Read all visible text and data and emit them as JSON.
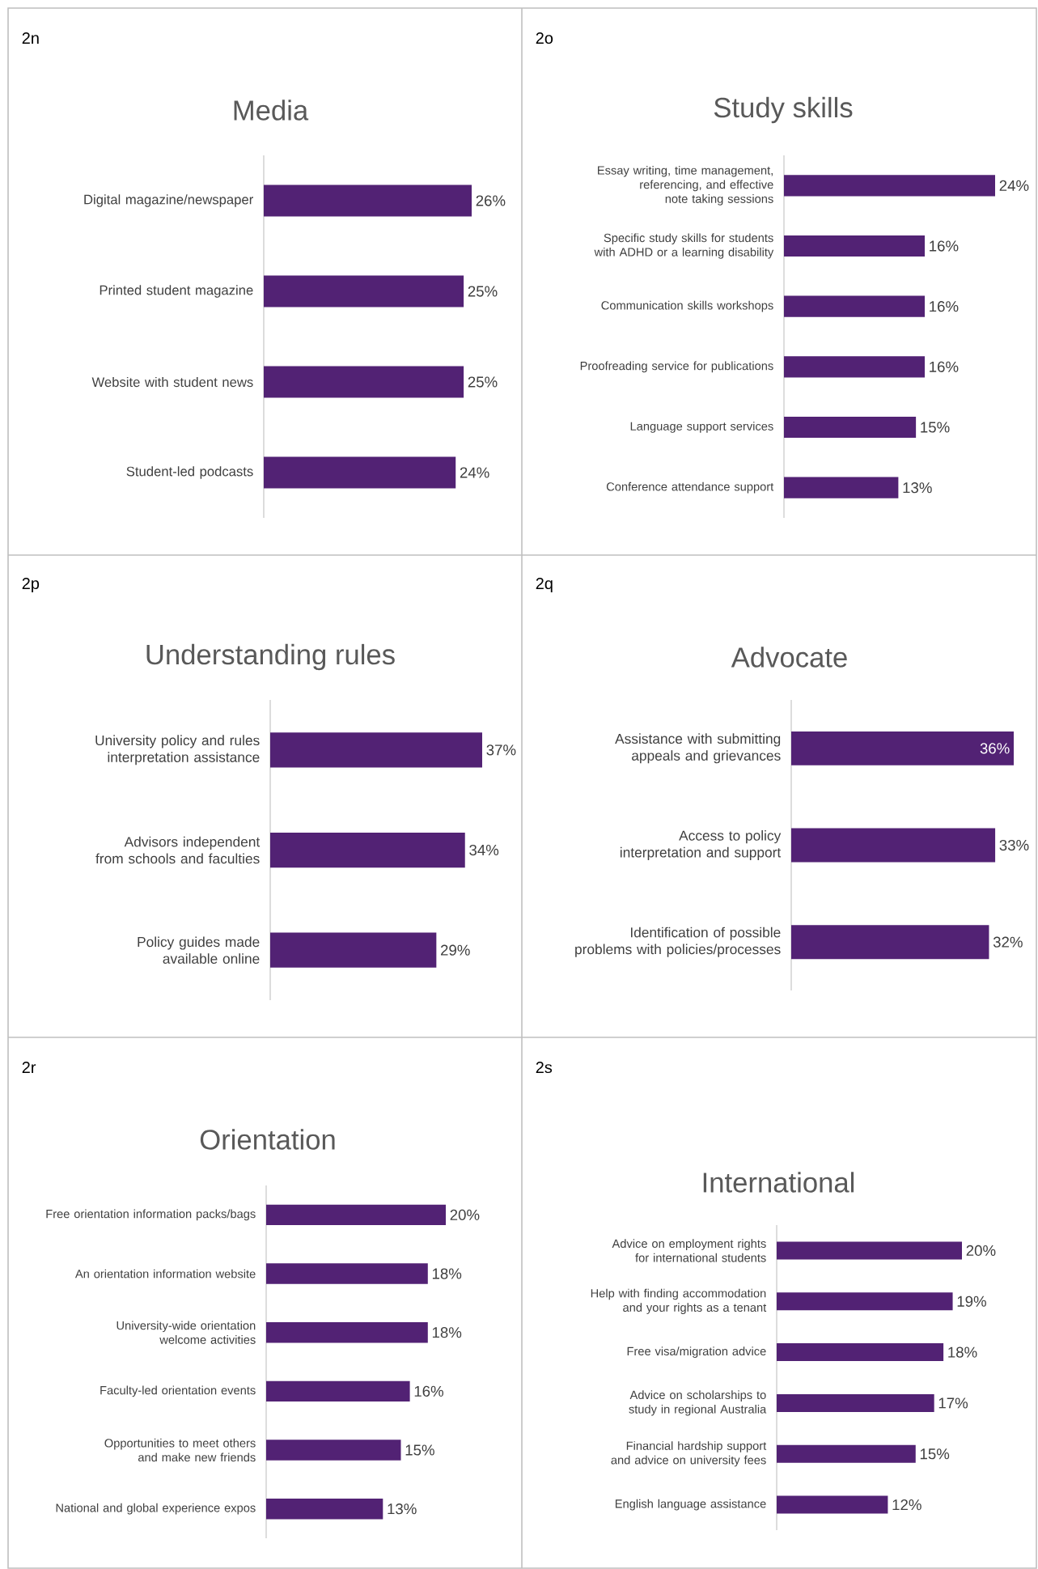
{
  "chart_data": [
    {
      "type": "bar",
      "orientation": "horizontal",
      "title": "Media",
      "annotations": [
        "2n"
      ],
      "color": "#522274",
      "categories": [
        "Digital magazine/newspaper",
        "Printed student magazine",
        "Website with student news",
        "Student-led podcasts"
      ],
      "values": [
        26,
        25,
        25,
        24
      ],
      "value_labels": [
        "26%",
        "25%",
        "25%",
        "24%"
      ]
    },
    {
      "type": "bar",
      "orientation": "horizontal",
      "title": "Study skills",
      "annotations": [
        "2o"
      ],
      "color": "#522274",
      "categories": [
        "Essay writing, time management, referencing, and effective note taking sessions",
        "Specific study skills for students with ADHD or a learning disability",
        "Communication skills workshops",
        "Proofreading service for publications",
        "Language support services",
        "Conference attendance support"
      ],
      "values": [
        24,
        16,
        16,
        16,
        15,
        13
      ],
      "value_labels": [
        "24%",
        "16%",
        "16%",
        "16%",
        "15%",
        "13%"
      ]
    },
    {
      "type": "bar",
      "orientation": "horizontal",
      "title": "Understanding rules",
      "annotations": [
        "2p"
      ],
      "color": "#522274",
      "categories": [
        "University policy and rules interpretation assistance",
        "Advisors independent from schools and faculties",
        "Policy guides made available online"
      ],
      "values": [
        37,
        34,
        29
      ],
      "value_labels": [
        "37%",
        "34%",
        "29%"
      ]
    },
    {
      "type": "bar",
      "orientation": "horizontal",
      "title": "Advocate",
      "annotations": [
        "2q"
      ],
      "color": "#522274",
      "categories": [
        "Assistance with submitting appeals and grievances",
        "Access to policy interpretation and support",
        "Identification of possible problems with policies/processes"
      ],
      "values": [
        36,
        33,
        32
      ],
      "value_labels": [
        "36%",
        "33%",
        "32%"
      ]
    },
    {
      "type": "bar",
      "orientation": "horizontal",
      "title": "Orientation",
      "annotations": [
        "2r"
      ],
      "color": "#522274",
      "categories": [
        "Free orientation information packs/bags",
        "An orientation information website",
        "University-wide orientation welcome activities",
        "Faculty-led orientation events",
        "Opportunities to meet others and make new friends",
        "National and global experience expos"
      ],
      "values": [
        20,
        18,
        18,
        16,
        15,
        13
      ],
      "value_labels": [
        "20%",
        "18%",
        "18%",
        "16%",
        "15%",
        "13%"
      ]
    },
    {
      "type": "bar",
      "orientation": "horizontal",
      "title": "International",
      "annotations": [
        "2s"
      ],
      "color": "#522274",
      "categories": [
        "Advice on employment rights for international students",
        "Help with finding accommodation and your rights as a tenant",
        "Free visa/migration advice",
        "Advice on scholarships to study in regional Australia",
        "Financial hardship support and advice on university fees",
        "English language assistance"
      ],
      "values": [
        20,
        19,
        18,
        17,
        15,
        12
      ],
      "value_labels": [
        "20%",
        "19%",
        "18%",
        "17%",
        "15%",
        "12%"
      ]
    }
  ]
}
